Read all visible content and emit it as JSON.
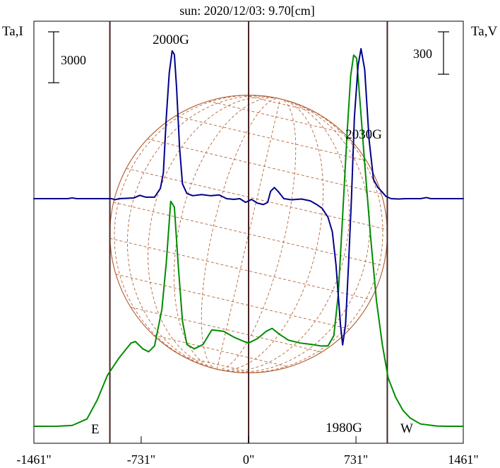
{
  "chart_data": {
    "type": "line",
    "title": "sun: 2020/12/03: 9.70[cm]",
    "left_axis_label": "Ta,I",
    "right_axis_label": "Ta,V",
    "left_scale_label": "3000",
    "right_scale_label": "300",
    "x_axis": {
      "range": [
        -1461,
        1461
      ],
      "ticks": [
        {
          "value": -1461,
          "label": "-1461\""
        },
        {
          "value": -731,
          "label": "-731\""
        },
        {
          "value": 0,
          "label": "0\""
        },
        {
          "value": 731,
          "label": "731\""
        },
        {
          "value": 1461,
          "label": "1461\""
        }
      ],
      "grid": false
    },
    "vertical_lines": [
      -944,
      0,
      944
    ],
    "limb_labels": {
      "east": "E",
      "west": "W"
    },
    "solar_disk": {
      "radius": 944,
      "color": "#b5653a",
      "grid": "dashed"
    },
    "annotations": [
      {
        "text": "2000G",
        "x": -520,
        "series": "V"
      },
      {
        "text": "2030G",
        "x": 760,
        "series": "V"
      },
      {
        "text": "1980G",
        "x": 620,
        "series": "V"
      }
    ],
    "series": [
      {
        "key": "I",
        "color": "#008c00",
        "points": [
          [
            -1461,
            0
          ],
          [
            -1300,
            2
          ],
          [
            -1200,
            30
          ],
          [
            -1100,
            250
          ],
          [
            -1030,
            900
          ],
          [
            -960,
            1750
          ],
          [
            -880,
            2350
          ],
          [
            -800,
            2850
          ],
          [
            -770,
            2900
          ],
          [
            -720,
            2650
          ],
          [
            -680,
            2550
          ],
          [
            -640,
            2750
          ],
          [
            -590,
            4000
          ],
          [
            -560,
            5600
          ],
          [
            -530,
            7700
          ],
          [
            -505,
            7500
          ],
          [
            -480,
            5600
          ],
          [
            -450,
            3600
          ],
          [
            -420,
            2800
          ],
          [
            -370,
            2650
          ],
          [
            -310,
            2800
          ],
          [
            -250,
            3300
          ],
          [
            -170,
            3250
          ],
          [
            -100,
            3050
          ],
          [
            -30,
            2900
          ],
          [
            0,
            2850
          ],
          [
            60,
            3000
          ],
          [
            120,
            3250
          ],
          [
            160,
            3350
          ],
          [
            210,
            3150
          ],
          [
            270,
            2950
          ],
          [
            350,
            2850
          ],
          [
            430,
            2800
          ],
          [
            490,
            2750
          ],
          [
            540,
            2750
          ],
          [
            580,
            3100
          ],
          [
            610,
            4500
          ],
          [
            640,
            7200
          ],
          [
            670,
            10000
          ],
          [
            695,
            12000
          ],
          [
            715,
            12700
          ],
          [
            735,
            12600
          ],
          [
            760,
            11000
          ],
          [
            790,
            9000
          ],
          [
            830,
            6500
          ],
          [
            870,
            4300
          ],
          [
            910,
            2800
          ],
          [
            950,
            1650
          ],
          [
            1000,
            1000
          ],
          [
            1050,
            550
          ],
          [
            1100,
            280
          ],
          [
            1170,
            80
          ],
          [
            1280,
            10
          ],
          [
            1350,
            0
          ],
          [
            1461,
            0
          ]
        ]
      },
      {
        "key": "V",
        "color": "#00008c",
        "points": [
          [
            -1461,
            0
          ],
          [
            -1230,
            0
          ],
          [
            -1200,
            10
          ],
          [
            -1170,
            0
          ],
          [
            -930,
            0
          ],
          [
            -910,
            -15
          ],
          [
            -880,
            0
          ],
          [
            -780,
            10
          ],
          [
            -740,
            45
          ],
          [
            -700,
            20
          ],
          [
            -640,
            20
          ],
          [
            -600,
            140
          ],
          [
            -580,
            350
          ],
          [
            -560,
            1100
          ],
          [
            -540,
            1700
          ],
          [
            -520,
            2000
          ],
          [
            -505,
            1950
          ],
          [
            -490,
            1500
          ],
          [
            -470,
            700
          ],
          [
            -450,
            200
          ],
          [
            -420,
            70
          ],
          [
            -380,
            40
          ],
          [
            -320,
            55
          ],
          [
            -260,
            40
          ],
          [
            -200,
            50
          ],
          [
            -150,
            0
          ],
          [
            -100,
            -10
          ],
          [
            -60,
            0
          ],
          [
            -20,
            -50
          ],
          [
            20,
            -10
          ],
          [
            60,
            -60
          ],
          [
            100,
            -80
          ],
          [
            130,
            -50
          ],
          [
            150,
            100
          ],
          [
            175,
            150
          ],
          [
            200,
            100
          ],
          [
            240,
            0
          ],
          [
            290,
            -15
          ],
          [
            360,
            -5
          ],
          [
            420,
            -30
          ],
          [
            460,
            -75
          ],
          [
            500,
            -130
          ],
          [
            540,
            -250
          ],
          [
            570,
            -450
          ],
          [
            595,
            -900
          ],
          [
            610,
            -1300
          ],
          [
            625,
            -1700
          ],
          [
            640,
            -1980
          ],
          [
            660,
            -1700
          ],
          [
            680,
            -900
          ],
          [
            700,
            0
          ],
          [
            720,
            1100
          ],
          [
            745,
            1800
          ],
          [
            765,
            2030
          ],
          [
            790,
            1750
          ],
          [
            820,
            800
          ],
          [
            850,
            260
          ],
          [
            880,
            150
          ],
          [
            905,
            100
          ],
          [
            935,
            30
          ],
          [
            970,
            0
          ],
          [
            1020,
            -5
          ],
          [
            1070,
            0
          ],
          [
            1170,
            0
          ],
          [
            1210,
            15
          ],
          [
            1240,
            0
          ],
          [
            1461,
            0
          ]
        ]
      }
    ]
  }
}
